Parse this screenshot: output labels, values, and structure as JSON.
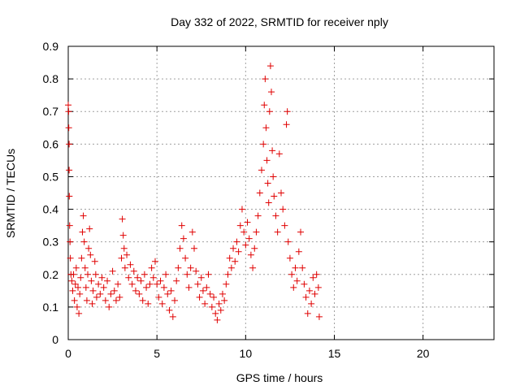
{
  "chart_data": {
    "type": "scatter",
    "title": "Day 332 of 2022, SRMTID for receiver nply",
    "xlabel": "GPS time / hours",
    "ylabel": "SRMTID / TECUs",
    "xlim": [
      0,
      24
    ],
    "ylim": [
      0,
      0.9
    ],
    "xticks": [
      0,
      5,
      10,
      15,
      20
    ],
    "yticks": [
      0,
      0.1,
      0.2,
      0.3,
      0.4,
      0.5,
      0.6,
      0.7,
      0.8,
      0.9
    ],
    "xtick_labels": [
      "0",
      "5",
      "10",
      "15",
      "20"
    ],
    "ytick_labels": [
      "0",
      "0.1",
      "0.2",
      "0.3",
      "0.4",
      "0.5",
      "0.6",
      "0.7",
      "0.8",
      "0.9"
    ],
    "grid": true,
    "marker": "+",
    "color": "#e00000",
    "series": [
      {
        "name": "SRMTID",
        "points": [
          [
            0.0,
            0.72
          ],
          [
            0.02,
            0.7
          ],
          [
            0.03,
            0.65
          ],
          [
            0.05,
            0.6
          ],
          [
            0.05,
            0.52
          ],
          [
            0.06,
            0.44
          ],
          [
            0.08,
            0.35
          ],
          [
            0.1,
            0.3
          ],
          [
            0.12,
            0.25
          ],
          [
            0.15,
            0.2
          ],
          [
            0.2,
            0.18
          ],
          [
            0.25,
            0.15
          ],
          [
            0.3,
            0.2
          ],
          [
            0.35,
            0.12
          ],
          [
            0.4,
            0.17
          ],
          [
            0.45,
            0.22
          ],
          [
            0.5,
            0.1
          ],
          [
            0.55,
            0.16
          ],
          [
            0.6,
            0.08
          ],
          [
            0.65,
            0.14
          ],
          [
            0.7,
            0.19
          ],
          [
            0.75,
            0.25
          ],
          [
            0.8,
            0.33
          ],
          [
            0.85,
            0.38
          ],
          [
            0.9,
            0.3
          ],
          [
            0.95,
            0.22
          ],
          [
            1.0,
            0.16
          ],
          [
            1.05,
            0.12
          ],
          [
            1.1,
            0.2
          ],
          [
            1.15,
            0.28
          ],
          [
            1.2,
            0.34
          ],
          [
            1.25,
            0.26
          ],
          [
            1.3,
            0.18
          ],
          [
            1.35,
            0.11
          ],
          [
            1.4,
            0.15
          ],
          [
            1.5,
            0.24
          ],
          [
            1.55,
            0.2
          ],
          [
            1.6,
            0.13
          ],
          [
            1.7,
            0.17
          ],
          [
            1.8,
            0.14
          ],
          [
            1.9,
            0.19
          ],
          [
            2.0,
            0.16
          ],
          [
            2.1,
            0.12
          ],
          [
            2.2,
            0.18
          ],
          [
            2.3,
            0.1
          ],
          [
            2.4,
            0.14
          ],
          [
            2.5,
            0.21
          ],
          [
            2.6,
            0.15
          ],
          [
            2.7,
            0.12
          ],
          [
            2.8,
            0.17
          ],
          [
            2.9,
            0.13
          ],
          [
            3.0,
            0.25
          ],
          [
            3.05,
            0.37
          ],
          [
            3.1,
            0.32
          ],
          [
            3.15,
            0.28
          ],
          [
            3.2,
            0.22
          ],
          [
            3.3,
            0.26
          ],
          [
            3.4,
            0.19
          ],
          [
            3.5,
            0.23
          ],
          [
            3.6,
            0.17
          ],
          [
            3.7,
            0.21
          ],
          [
            3.8,
            0.15
          ],
          [
            3.9,
            0.19
          ],
          [
            4.0,
            0.14
          ],
          [
            4.1,
            0.18
          ],
          [
            4.2,
            0.12
          ],
          [
            4.3,
            0.2
          ],
          [
            4.4,
            0.16
          ],
          [
            4.5,
            0.11
          ],
          [
            4.6,
            0.17
          ],
          [
            4.7,
            0.22
          ],
          [
            4.8,
            0.19
          ],
          [
            4.9,
            0.24
          ],
          [
            5.0,
            0.17
          ],
          [
            5.1,
            0.13
          ],
          [
            5.2,
            0.18
          ],
          [
            5.3,
            0.11
          ],
          [
            5.4,
            0.16
          ],
          [
            5.5,
            0.2
          ],
          [
            5.6,
            0.14
          ],
          [
            5.7,
            0.09
          ],
          [
            5.8,
            0.15
          ],
          [
            5.9,
            0.07
          ],
          [
            6.0,
            0.12
          ],
          [
            6.1,
            0.18
          ],
          [
            6.2,
            0.22
          ],
          [
            6.3,
            0.28
          ],
          [
            6.4,
            0.35
          ],
          [
            6.5,
            0.31
          ],
          [
            6.6,
            0.25
          ],
          [
            6.7,
            0.2
          ],
          [
            6.8,
            0.16
          ],
          [
            6.9,
            0.22
          ],
          [
            7.0,
            0.33
          ],
          [
            7.1,
            0.28
          ],
          [
            7.2,
            0.21
          ],
          [
            7.3,
            0.17
          ],
          [
            7.4,
            0.13
          ],
          [
            7.5,
            0.19
          ],
          [
            7.6,
            0.15
          ],
          [
            7.7,
            0.11
          ],
          [
            7.8,
            0.16
          ],
          [
            7.9,
            0.2
          ],
          [
            8.0,
            0.14
          ],
          [
            8.1,
            0.1
          ],
          [
            8.2,
            0.13
          ],
          [
            8.3,
            0.08
          ],
          [
            8.4,
            0.06
          ],
          [
            8.5,
            0.11
          ],
          [
            8.6,
            0.09
          ],
          [
            8.7,
            0.14
          ],
          [
            8.8,
            0.12
          ],
          [
            8.9,
            0.17
          ],
          [
            9.0,
            0.2
          ],
          [
            9.1,
            0.25
          ],
          [
            9.2,
            0.22
          ],
          [
            9.3,
            0.28
          ],
          [
            9.4,
            0.24
          ],
          [
            9.5,
            0.3
          ],
          [
            9.6,
            0.27
          ],
          [
            9.7,
            0.35
          ],
          [
            9.8,
            0.4
          ],
          [
            9.9,
            0.33
          ],
          [
            10.0,
            0.29
          ],
          [
            10.1,
            0.36
          ],
          [
            10.2,
            0.31
          ],
          [
            10.3,
            0.26
          ],
          [
            10.4,
            0.22
          ],
          [
            10.5,
            0.28
          ],
          [
            10.6,
            0.33
          ],
          [
            10.7,
            0.38
          ],
          [
            10.8,
            0.45
          ],
          [
            10.9,
            0.52
          ],
          [
            11.0,
            0.6
          ],
          [
            11.05,
            0.72
          ],
          [
            11.1,
            0.8
          ],
          [
            11.15,
            0.65
          ],
          [
            11.2,
            0.55
          ],
          [
            11.25,
            0.48
          ],
          [
            11.3,
            0.42
          ],
          [
            11.35,
            0.7
          ],
          [
            11.4,
            0.84
          ],
          [
            11.45,
            0.76
          ],
          [
            11.5,
            0.58
          ],
          [
            11.55,
            0.5
          ],
          [
            11.6,
            0.44
          ],
          [
            11.7,
            0.38
          ],
          [
            11.8,
            0.33
          ],
          [
            11.9,
            0.57
          ],
          [
            12.0,
            0.45
          ],
          [
            12.1,
            0.4
          ],
          [
            12.2,
            0.35
          ],
          [
            12.3,
            0.66
          ],
          [
            12.35,
            0.7
          ],
          [
            12.4,
            0.3
          ],
          [
            12.5,
            0.25
          ],
          [
            12.6,
            0.2
          ],
          [
            12.7,
            0.16
          ],
          [
            12.8,
            0.22
          ],
          [
            12.9,
            0.18
          ],
          [
            13.0,
            0.27
          ],
          [
            13.1,
            0.33
          ],
          [
            13.2,
            0.22
          ],
          [
            13.3,
            0.17
          ],
          [
            13.4,
            0.13
          ],
          [
            13.5,
            0.08
          ],
          [
            13.6,
            0.15
          ],
          [
            13.7,
            0.11
          ],
          [
            13.8,
            0.19
          ],
          [
            13.9,
            0.14
          ],
          [
            14.0,
            0.2
          ],
          [
            14.1,
            0.16
          ],
          [
            14.15,
            0.07
          ]
        ]
      }
    ]
  }
}
